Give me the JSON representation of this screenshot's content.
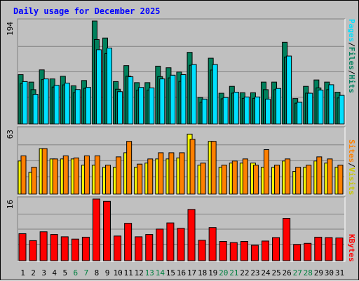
{
  "title": "Daily usage for December 2025",
  "colors": {
    "background": "#c0c0c0",
    "title": "#0000ff",
    "day_weekday": "#000000",
    "day_weekend": "#008040",
    "pages": "#00e0ff",
    "files": "#00805c",
    "hits": "#008060",
    "sites": "#ff8000",
    "visits": "#ffff00",
    "kbytes": "#ff0000"
  },
  "chart_data": [
    {
      "type": "bar",
      "panel": "hits-files-pages",
      "ylim": [
        0,
        194
      ],
      "ymax_label": "194",
      "legend": [
        "Pages",
        "/",
        "Files",
        "/",
        "Hits"
      ],
      "categories": [
        "1",
        "2",
        "3",
        "4",
        "5",
        "6",
        "7",
        "8",
        "9",
        "10",
        "11",
        "12",
        "13",
        "14",
        "15",
        "16",
        "17",
        "18",
        "19",
        "20",
        "21",
        "22",
        "23",
        "24",
        "25",
        "26",
        "27",
        "28",
        "29",
        "30",
        "31"
      ],
      "weekend_days": [
        "6",
        "7",
        "13",
        "14",
        "20",
        "21",
        "27",
        "28"
      ],
      "series": [
        {
          "name": "Hits",
          "values": [
            93,
            79,
            102,
            85,
            90,
            72,
            82,
            194,
            162,
            80,
            110,
            78,
            78,
            109,
            106,
            98,
            135,
            50,
            124,
            58,
            71,
            59,
            59,
            79,
            79,
            154,
            48,
            71,
            83,
            79,
            60
          ]
        },
        {
          "name": "Files",
          "values": [
            93,
            79,
            102,
            85,
            90,
            72,
            82,
            194,
            162,
            80,
            110,
            78,
            78,
            109,
            106,
            98,
            135,
            50,
            124,
            58,
            71,
            59,
            59,
            79,
            79,
            154,
            48,
            71,
            83,
            79,
            60
          ]
        },
        {
          "name": "Pages",
          "values": [
            80,
            56,
            85,
            73,
            77,
            65,
            69,
            140,
            143,
            61,
            89,
            69,
            68,
            85,
            92,
            93,
            112,
            47,
            112,
            50,
            60,
            51,
            51,
            47,
            67,
            128,
            41,
            58,
            64,
            74,
            54
          ]
        }
      ]
    },
    {
      "type": "bar",
      "panel": "visits-sites",
      "ylim": [
        0,
        63
      ],
      "ymax_label": "63",
      "legend": [
        "Sites",
        "/",
        "Visits"
      ],
      "categories": [
        "1",
        "2",
        "3",
        "4",
        "5",
        "6",
        "7",
        "8",
        "9",
        "10",
        "11",
        "12",
        "13",
        "14",
        "15",
        "16",
        "17",
        "18",
        "19",
        "20",
        "21",
        "22",
        "23",
        "24",
        "25",
        "26",
        "27",
        "28",
        "29",
        "30",
        "31"
      ],
      "series": [
        {
          "name": "Visits",
          "values": [
            32,
            21,
            44,
            34,
            34,
            34,
            28,
            28,
            26,
            26,
            40,
            26,
            30,
            34,
            34,
            35,
            58,
            28,
            51,
            26,
            30,
            30,
            30,
            26,
            26,
            32,
            22,
            26,
            32,
            30,
            26
          ]
        },
        {
          "name": "Sites",
          "values": [
            37,
            26,
            44,
            34,
            37,
            35,
            37,
            37,
            28,
            36,
            51,
            29,
            34,
            40,
            40,
            40,
            53,
            30,
            51,
            28,
            32,
            34,
            28,
            43,
            28,
            34,
            26,
            28,
            36,
            34,
            28
          ]
        }
      ]
    },
    {
      "type": "bar",
      "panel": "kbytes",
      "ylim": [
        0,
        16
      ],
      "ymax_label": "16",
      "legend": [
        "KBytes"
      ],
      "categories": [
        "1",
        "2",
        "3",
        "4",
        "5",
        "6",
        "7",
        "8",
        "9",
        "10",
        "11",
        "12",
        "13",
        "14",
        "15",
        "16",
        "17",
        "18",
        "19",
        "20",
        "21",
        "22",
        "23",
        "24",
        "25",
        "26",
        "27",
        "28",
        "29",
        "30",
        "31"
      ],
      "series": [
        {
          "name": "KBytes",
          "values": [
            7.0,
            5.2,
            7.5,
            6.8,
            6.2,
            5.6,
            6.1,
            16,
            15.4,
            6.4,
            9.7,
            6.2,
            6.8,
            8.2,
            9.8,
            8.4,
            13.3,
            5.3,
            8.6,
            5.0,
            4.7,
            5.0,
            4.0,
            5.1,
            6.0,
            11.0,
            4.2,
            4.5,
            6.1,
            6.0,
            5.9
          ]
        }
      ]
    }
  ]
}
